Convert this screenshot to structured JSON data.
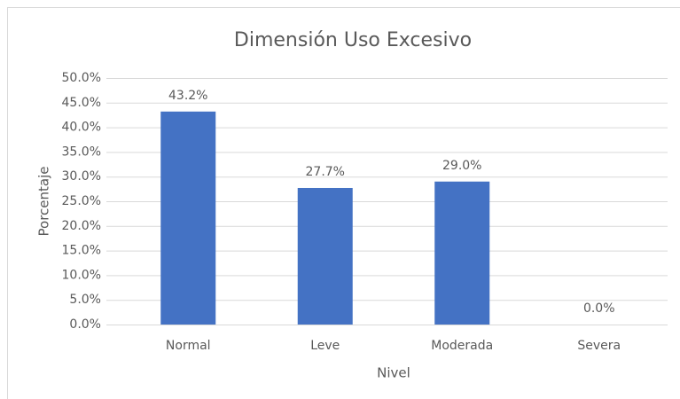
{
  "chart_data": {
    "type": "bar",
    "title": "Dimensión Uso Excesivo",
    "x_label": "Nivel",
    "y_label": "Porcentaje",
    "categories": [
      "Normal",
      "Leve",
      "Moderada",
      "Severa"
    ],
    "values": [
      43.2,
      27.7,
      29.0,
      0.0
    ],
    "value_labels": [
      "43.2%",
      "27.7%",
      "29.0%",
      "0.0%"
    ],
    "color": "#4472c4",
    "ylim": [
      0,
      50
    ],
    "yticks": [
      {
        "value": 0,
        "label": "0.0%"
      },
      {
        "value": 5,
        "label": "5.0%"
      },
      {
        "value": 10,
        "label": "10.0%"
      },
      {
        "value": 15,
        "label": "15.0%"
      },
      {
        "value": 20,
        "label": "20.0%"
      },
      {
        "value": 25,
        "label": "25.0%"
      },
      {
        "value": 30,
        "label": "30.0%"
      },
      {
        "value": 35,
        "label": "35.0%"
      },
      {
        "value": 40,
        "label": "40.0%"
      },
      {
        "value": 45,
        "label": "45.0%"
      },
      {
        "value": 50,
        "label": "50.0%"
      }
    ],
    "grid": true
  }
}
